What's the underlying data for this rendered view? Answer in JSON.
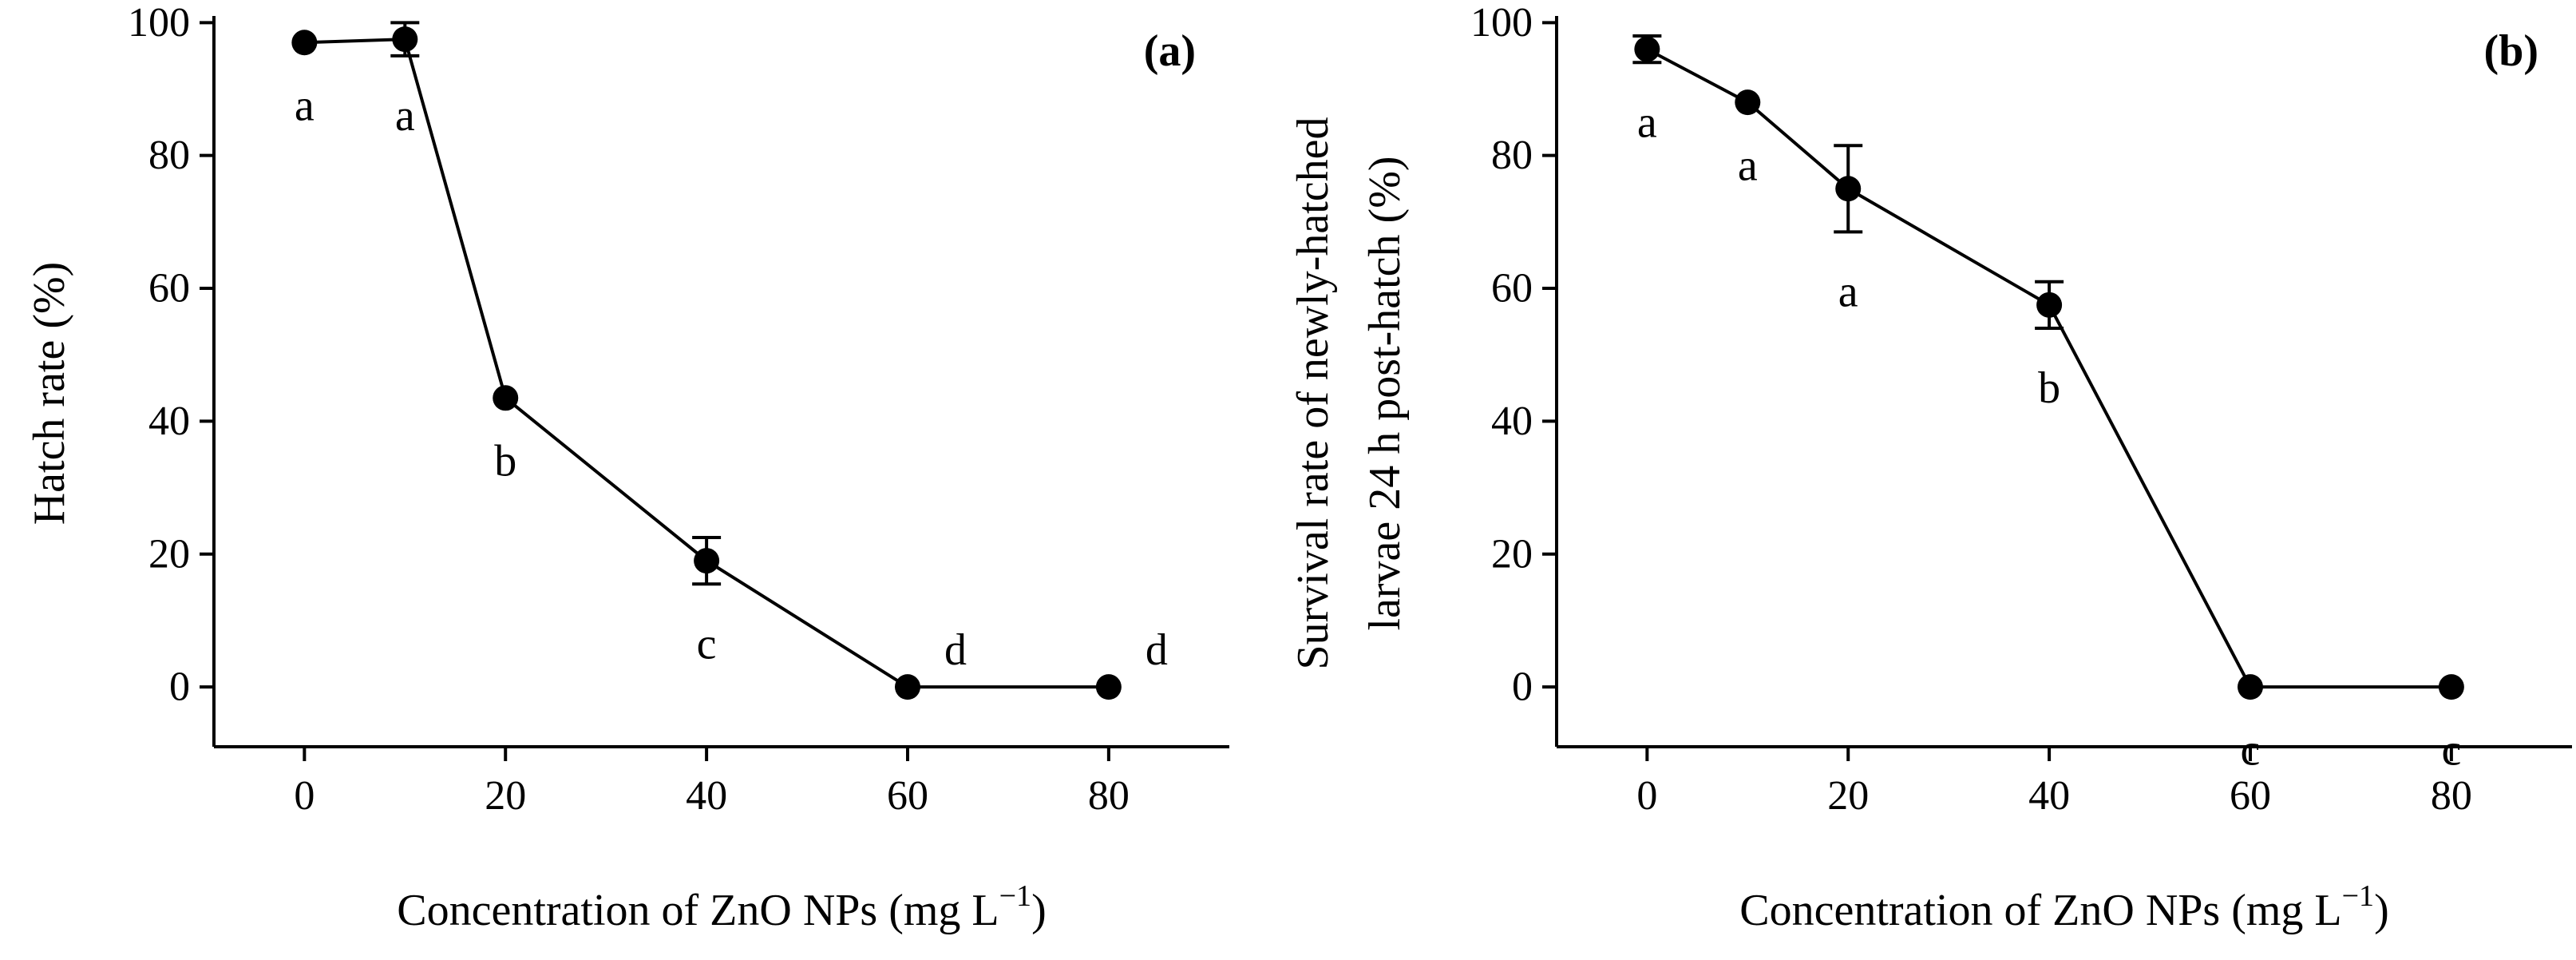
{
  "chart_data": [
    {
      "type": "line",
      "panel_label": "(a)",
      "title": "",
      "xlabel": "Concentration of ZnO NPs (mg L",
      "xlabel_sup": "−1",
      "xlabel_close": ")",
      "ylabel_lines": [
        "Hatch rate (%)"
      ],
      "xlim": [
        -9,
        92
      ],
      "ylim": [
        -9,
        101
      ],
      "x_ticks": [
        0,
        20,
        40,
        60,
        80
      ],
      "y_ticks": [
        0,
        20,
        40,
        60,
        80,
        100
      ],
      "series": [
        {
          "name": "Hatch rate",
          "x": [
            0,
            10,
            20,
            40,
            60,
            80
          ],
          "y": [
            97,
            97.5,
            43.5,
            19,
            0,
            0
          ],
          "err": [
            0,
            2.5,
            0,
            3.5,
            0,
            0
          ],
          "letters": [
            "a",
            "a",
            "b",
            "c",
            "d",
            "d"
          ],
          "letter_pos": [
            "below",
            "below",
            "below",
            "below",
            "above",
            "above"
          ]
        }
      ]
    },
    {
      "type": "line",
      "panel_label": "(b)",
      "title": "",
      "xlabel": "Concentration of ZnO NPs (mg L",
      "xlabel_sup": "−1",
      "xlabel_close": ")",
      "ylabel_lines": [
        "Survival rate of newly-hatched",
        "larvae 24 h post-hatch (%)"
      ],
      "xlim": [
        -9,
        92
      ],
      "ylim": [
        -9,
        101
      ],
      "x_ticks": [
        0,
        20,
        40,
        60,
        80
      ],
      "y_ticks": [
        0,
        20,
        40,
        60,
        80,
        100
      ],
      "series": [
        {
          "name": "Survival rate",
          "x": [
            0,
            10,
            20,
            40,
            60,
            80
          ],
          "y": [
            96,
            88,
            75,
            57.5,
            0,
            0
          ],
          "err": [
            2,
            0,
            6.5,
            3.5,
            0,
            0
          ],
          "letters": [
            "a",
            "a",
            "a",
            "b",
            "c",
            "c"
          ],
          "letter_pos": [
            "below",
            "below",
            "below",
            "below",
            "below",
            "below"
          ]
        }
      ]
    }
  ]
}
